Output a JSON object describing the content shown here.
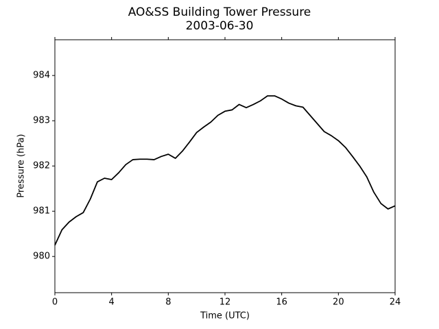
{
  "chart_data": {
    "type": "line",
    "title": "AO&SS Building Tower Pressure",
    "subtitle": "2003-06-30",
    "x_label": "Time (UTC)",
    "y_label": "Pressure (hPa)",
    "x": [
      0,
      0.5,
      1,
      1.5,
      2,
      2.5,
      3,
      3.5,
      4,
      4.5,
      5,
      5.5,
      6,
      6.5,
      7,
      7.5,
      8,
      8.5,
      9,
      9.5,
      10,
      10.5,
      11,
      11.5,
      12,
      12.5,
      13,
      13.5,
      14,
      14.5,
      15,
      15.5,
      16,
      16.5,
      17,
      17.5,
      18,
      18.5,
      19,
      19.5,
      20,
      20.5,
      21,
      21.5,
      22,
      22.5,
      23,
      23.5,
      24
    ],
    "series": [
      {
        "name": "Pressure",
        "color": "#000000",
        "values": [
          980.25,
          980.59,
          980.76,
          980.88,
          980.97,
          981.27,
          981.65,
          981.73,
          981.7,
          981.85,
          982.03,
          982.14,
          982.15,
          982.15,
          982.14,
          982.21,
          982.26,
          982.17,
          982.33,
          982.53,
          982.74,
          982.86,
          982.97,
          983.12,
          983.21,
          983.24,
          983.36,
          983.29,
          983.36,
          983.44,
          983.55,
          983.55,
          983.48,
          983.39,
          983.33,
          983.3,
          983.12,
          982.94,
          982.76,
          982.67,
          982.56,
          982.41,
          982.21,
          982.0,
          981.76,
          981.42,
          981.17,
          981.05,
          981.12
        ]
      }
    ],
    "xlim": [
      0,
      24
    ],
    "xticks": [
      0,
      4,
      8,
      12,
      16,
      20,
      24
    ],
    "ylim": [
      979.2,
      984.79
    ],
    "yticks": [
      980,
      981,
      982,
      983,
      984
    ],
    "grid": false
  }
}
